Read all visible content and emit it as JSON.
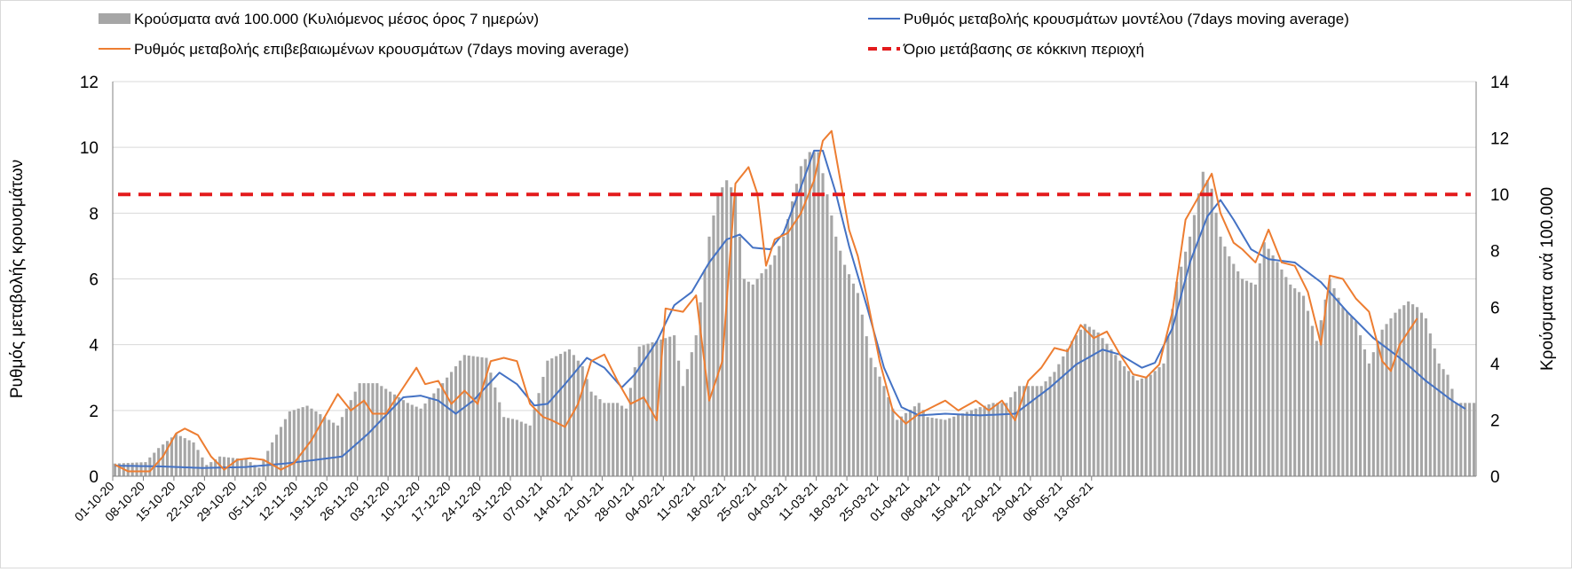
{
  "chart_data": {
    "type": "bar+line",
    "title": "",
    "xlabel": "",
    "ylabel_left": "Ρυθμός μεταβολής κρουσμάτων",
    "ylabel_right": "Κρούσματα ανά 100.000",
    "ylim_left": [
      0,
      12
    ],
    "ylim_right": [
      0,
      14
    ],
    "yticks_left": [
      0,
      2,
      4,
      6,
      8,
      10,
      12
    ],
    "yticks_right": [
      0,
      2,
      4,
      6,
      8,
      10,
      12,
      14
    ],
    "grid": true,
    "legend_position": "top",
    "start_date": "2020-10-01",
    "x_tick_labels": [
      "01-10-20",
      "08-10-20",
      "15-10-20",
      "22-10-20",
      "29-10-20",
      "05-11-20",
      "12-11-20",
      "19-11-20",
      "26-11-20",
      "03-12-20",
      "10-12-20",
      "17-12-20",
      "24-12-20",
      "31-12-20",
      "07-01-21",
      "14-01-21",
      "21-01-21",
      "28-01-21",
      "04-02-21",
      "11-02-21",
      "18-02-21",
      "25-02-21",
      "04-03-21",
      "11-03-21",
      "18-03-21",
      "25-03-21",
      "01-04-21",
      "08-04-21",
      "15-04-21",
      "22-04-21",
      "29-04-21",
      "06-05-21",
      "13-05-21"
    ],
    "threshold": {
      "name": "Όριο μετάβασης σε κόκκινη περιοχή",
      "value": 8.57,
      "color": "#e31a1c"
    },
    "series": [
      {
        "name": "Κρούσματα ανά 100.000 (Κυλιόμενος μέσος όρος 7 ημερών)",
        "axis": "right",
        "kind": "bar",
        "color": "#a6a6a6",
        "keypoints": [
          [
            0,
            0.45
          ],
          [
            7,
            0.5
          ],
          [
            10,
            1.0
          ],
          [
            14,
            1.5
          ],
          [
            18,
            1.2
          ],
          [
            21,
            0.4
          ],
          [
            24,
            0.7
          ],
          [
            30,
            0.6
          ],
          [
            33,
            0.3
          ],
          [
            36,
            1.2
          ],
          [
            40,
            2.3
          ],
          [
            44,
            2.5
          ],
          [
            47,
            2.2
          ],
          [
            51,
            1.8
          ],
          [
            56,
            3.3
          ],
          [
            60,
            3.3
          ],
          [
            64,
            2.9
          ],
          [
            67,
            2.6
          ],
          [
            70,
            2.4
          ],
          [
            75,
            3.3
          ],
          [
            80,
            4.3
          ],
          [
            85,
            4.2
          ],
          [
            89,
            2.1
          ],
          [
            92,
            2.0
          ],
          [
            95,
            1.8
          ],
          [
            99,
            4.1
          ],
          [
            104,
            4.5
          ],
          [
            107,
            3.9
          ],
          [
            109,
            3.0
          ],
          [
            112,
            2.6
          ],
          [
            115,
            2.6
          ],
          [
            117,
            2.4
          ],
          [
            120,
            4.6
          ],
          [
            124,
            4.8
          ],
          [
            128,
            5.0
          ],
          [
            130,
            3.2
          ],
          [
            133,
            5.0
          ],
          [
            136,
            8.5
          ],
          [
            138,
            10.0
          ],
          [
            140,
            10.5
          ],
          [
            142,
            10.0
          ],
          [
            144,
            7.0
          ],
          [
            146,
            6.8
          ],
          [
            148,
            7.2
          ],
          [
            150,
            7.5
          ],
          [
            153,
            8.5
          ],
          [
            157,
            11.0
          ],
          [
            159,
            11.5
          ],
          [
            161,
            11.5
          ],
          [
            163,
            10.0
          ],
          [
            165,
            8.5
          ],
          [
            167,
            7.5
          ],
          [
            170,
            6.5
          ],
          [
            173,
            4.2
          ],
          [
            176,
            3.2
          ],
          [
            179,
            2.0
          ],
          [
            184,
            2.6
          ],
          [
            186,
            2.1
          ],
          [
            190,
            2.0
          ],
          [
            197,
            2.4
          ],
          [
            201,
            2.6
          ],
          [
            204,
            2.6
          ],
          [
            207,
            3.2
          ],
          [
            212,
            3.2
          ],
          [
            215,
            3.7
          ],
          [
            219,
            4.8
          ],
          [
            222,
            5.4
          ],
          [
            225,
            5.1
          ],
          [
            228,
            4.5
          ],
          [
            231,
            3.9
          ],
          [
            234,
            3.4
          ],
          [
            237,
            3.6
          ],
          [
            240,
            4.0
          ],
          [
            243,
            6.9
          ],
          [
            246,
            8.5
          ],
          [
            249,
            10.8
          ],
          [
            251,
            10.2
          ],
          [
            253,
            8.5
          ],
          [
            255,
            7.8
          ],
          [
            258,
            7.0
          ],
          [
            261,
            6.8
          ],
          [
            263,
            8.3
          ],
          [
            266,
            7.6
          ],
          [
            269,
            6.8
          ],
          [
            272,
            6.4
          ],
          [
            275,
            4.8
          ],
          [
            278,
            7.0
          ],
          [
            281,
            6.0
          ],
          [
            284,
            5.5
          ],
          [
            287,
            4.0
          ],
          [
            290,
            5.2
          ],
          [
            293,
            5.8
          ],
          [
            296,
            6.2
          ],
          [
            298,
            6.0
          ],
          [
            300,
            5.6
          ],
          [
            303,
            4.0
          ],
          [
            305,
            3.6
          ],
          [
            307,
            2.6
          ]
        ]
      },
      {
        "name": "Ρυθμός μεταβολής κρουσμάτων μοντέλου (7days moving average)",
        "axis": "left",
        "kind": "line",
        "color": "#4472c4",
        "keypoints": [
          [
            0,
            0.32
          ],
          [
            10,
            0.3
          ],
          [
            20,
            0.25
          ],
          [
            30,
            0.28
          ],
          [
            40,
            0.4
          ],
          [
            52,
            0.6
          ],
          [
            58,
            1.3
          ],
          [
            66,
            2.4
          ],
          [
            70,
            2.45
          ],
          [
            74,
            2.3
          ],
          [
            78,
            1.9
          ],
          [
            82,
            2.3
          ],
          [
            88,
            3.15
          ],
          [
            92,
            2.8
          ],
          [
            96,
            2.15
          ],
          [
            99,
            2.2
          ],
          [
            103,
            2.8
          ],
          [
            108,
            3.6
          ],
          [
            112,
            3.3
          ],
          [
            116,
            2.7
          ],
          [
            119,
            3.1
          ],
          [
            124,
            4.1
          ],
          [
            128,
            5.2
          ],
          [
            132,
            5.6
          ],
          [
            136,
            6.5
          ],
          [
            140,
            7.2
          ],
          [
            143,
            7.35
          ],
          [
            146,
            6.95
          ],
          [
            150,
            6.9
          ],
          [
            153,
            7.4
          ],
          [
            157,
            8.8
          ],
          [
            160,
            9.9
          ],
          [
            162,
            9.9
          ],
          [
            165,
            8.6
          ],
          [
            168,
            7.0
          ],
          [
            172,
            5.2
          ],
          [
            176,
            3.3
          ],
          [
            180,
            2.1
          ],
          [
            184,
            1.85
          ],
          [
            190,
            1.9
          ],
          [
            198,
            1.85
          ],
          [
            206,
            1.9
          ],
          [
            214,
            2.7
          ],
          [
            220,
            3.4
          ],
          [
            226,
            3.85
          ],
          [
            230,
            3.7
          ],
          [
            235,
            3.3
          ],
          [
            238,
            3.45
          ],
          [
            242,
            4.5
          ],
          [
            246,
            6.5
          ],
          [
            250,
            7.9
          ],
          [
            253,
            8.4
          ],
          [
            256,
            7.8
          ],
          [
            260,
            6.9
          ],
          [
            264,
            6.6
          ],
          [
            270,
            6.5
          ],
          [
            276,
            5.9
          ],
          [
            282,
            5.0
          ],
          [
            288,
            4.2
          ],
          [
            294,
            3.6
          ],
          [
            300,
            2.9
          ],
          [
            306,
            2.3
          ],
          [
            309,
            2.05
          ]
        ]
      },
      {
        "name": "Ρυθμός μεταβολής επιβεβαιωμένων κρουσμάτων (7days moving average)",
        "axis": "left",
        "kind": "line",
        "color": "#ed7d31",
        "keypoints": [
          [
            0,
            0.35
          ],
          [
            3,
            0.15
          ],
          [
            8,
            0.15
          ],
          [
            11,
            0.6
          ],
          [
            14,
            1.3
          ],
          [
            16,
            1.45
          ],
          [
            19,
            1.25
          ],
          [
            22,
            0.6
          ],
          [
            25,
            0.2
          ],
          [
            28,
            0.5
          ],
          [
            31,
            0.55
          ],
          [
            34,
            0.5
          ],
          [
            38,
            0.2
          ],
          [
            41,
            0.4
          ],
          [
            45,
            1.1
          ],
          [
            48,
            1.8
          ],
          [
            51,
            2.5
          ],
          [
            54,
            2.0
          ],
          [
            57,
            2.3
          ],
          [
            59,
            1.9
          ],
          [
            62,
            1.9
          ],
          [
            66,
            2.7
          ],
          [
            69,
            3.3
          ],
          [
            71,
            2.8
          ],
          [
            74,
            2.9
          ],
          [
            77,
            2.2
          ],
          [
            80,
            2.6
          ],
          [
            83,
            2.2
          ],
          [
            86,
            3.5
          ],
          [
            89,
            3.6
          ],
          [
            92,
            3.5
          ],
          [
            95,
            2.2
          ],
          [
            98,
            1.8
          ],
          [
            100,
            1.7
          ],
          [
            103,
            1.5
          ],
          [
            106,
            2.2
          ],
          [
            109,
            3.5
          ],
          [
            112,
            3.7
          ],
          [
            115,
            2.9
          ],
          [
            118,
            2.2
          ],
          [
            121,
            2.4
          ],
          [
            124,
            1.7
          ],
          [
            126,
            5.1
          ],
          [
            130,
            5.0
          ],
          [
            133,
            5.5
          ],
          [
            136,
            2.3
          ],
          [
            139,
            3.5
          ],
          [
            142,
            8.9
          ],
          [
            145,
            9.4
          ],
          [
            147,
            8.6
          ],
          [
            149,
            6.4
          ],
          [
            151,
            7.2
          ],
          [
            154,
            7.4
          ],
          [
            157,
            8.0
          ],
          [
            160,
            9.0
          ],
          [
            162,
            10.2
          ],
          [
            164,
            10.5
          ],
          [
            166,
            9.0
          ],
          [
            168,
            7.5
          ],
          [
            170,
            6.7
          ],
          [
            172,
            5.5
          ],
          [
            175,
            3.5
          ],
          [
            178,
            2.0
          ],
          [
            181,
            1.6
          ],
          [
            184,
            1.9
          ],
          [
            187,
            2.1
          ],
          [
            190,
            2.3
          ],
          [
            193,
            2.0
          ],
          [
            197,
            2.3
          ],
          [
            200,
            2.0
          ],
          [
            203,
            2.3
          ],
          [
            206,
            1.7
          ],
          [
            209,
            2.9
          ],
          [
            212,
            3.3
          ],
          [
            215,
            3.9
          ],
          [
            218,
            3.8
          ],
          [
            221,
            4.6
          ],
          [
            224,
            4.2
          ],
          [
            227,
            4.4
          ],
          [
            230,
            3.7
          ],
          [
            233,
            3.1
          ],
          [
            236,
            3.0
          ],
          [
            239,
            3.4
          ],
          [
            242,
            5.0
          ],
          [
            245,
            7.8
          ],
          [
            248,
            8.5
          ],
          [
            251,
            9.2
          ],
          [
            253,
            8.0
          ],
          [
            256,
            7.1
          ],
          [
            258,
            6.9
          ],
          [
            261,
            6.5
          ],
          [
            264,
            7.5
          ],
          [
            267,
            6.5
          ],
          [
            270,
            6.4
          ],
          [
            273,
            5.6
          ],
          [
            276,
            4.0
          ],
          [
            278,
            6.1
          ],
          [
            281,
            6.0
          ],
          [
            284,
            5.4
          ],
          [
            287,
            5.0
          ],
          [
            290,
            3.5
          ],
          [
            292,
            3.2
          ],
          [
            294,
            4.0
          ],
          [
            296,
            4.4
          ],
          [
            298,
            4.8
          ]
        ]
      }
    ]
  }
}
